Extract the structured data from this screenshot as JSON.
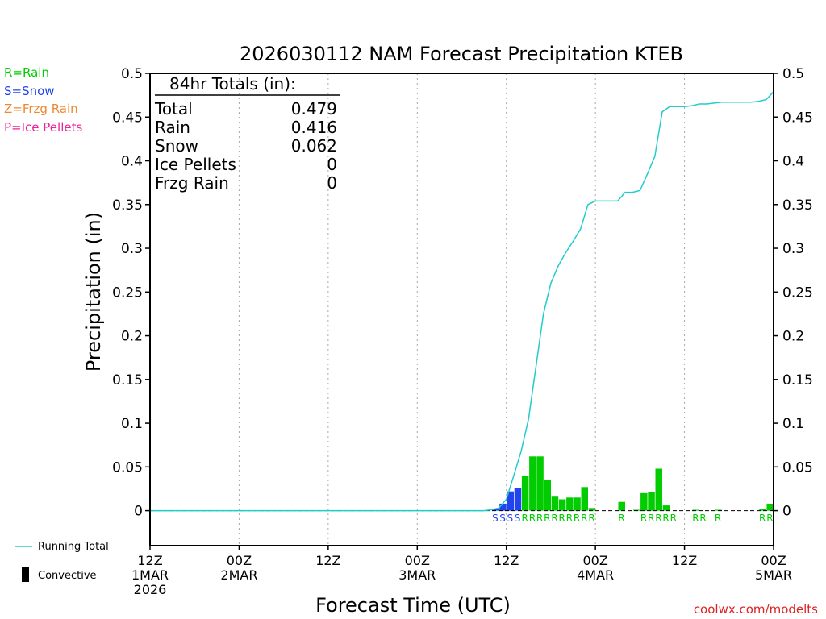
{
  "chart_data": {
    "type": "bar",
    "title": "2026030112 NAM Forecast Precipitation KTEB",
    "xlabel": "Forecast Time (UTC)",
    "ylabel": "Precipitation (in)",
    "ylim": [
      -0.04,
      0.5
    ],
    "yticks": [
      0,
      0.05,
      0.1,
      0.15,
      0.2,
      0.25,
      0.3,
      0.35,
      0.4,
      0.45,
      0.5
    ],
    "ytick_labels": [
      "0",
      "0.05",
      "0.1",
      "0.15",
      "0.2",
      "0.25",
      "0.3",
      "0.35",
      "0.4",
      "0.45",
      "0.5"
    ],
    "xlim_hours": [
      0,
      84
    ],
    "xticks": [
      {
        "hour": 0,
        "line1": "12Z",
        "line2": "1MAR",
        "line3": "2026"
      },
      {
        "hour": 12,
        "line1": "00Z",
        "line2": "2MAR",
        "line3": ""
      },
      {
        "hour": 24,
        "line1": "12Z",
        "line2": "",
        "line3": ""
      },
      {
        "hour": 36,
        "line1": "00Z",
        "line2": "3MAR",
        "line3": ""
      },
      {
        "hour": 48,
        "line1": "12Z",
        "line2": "",
        "line3": ""
      },
      {
        "hour": 60,
        "line1": "00Z",
        "line2": "4MAR",
        "line3": ""
      },
      {
        "hour": 72,
        "line1": "12Z",
        "line2": "",
        "line3": ""
      },
      {
        "hour": 84,
        "line1": "00Z",
        "line2": "5MAR",
        "line3": ""
      }
    ],
    "precip_series": {
      "name": "Hourly precipitation by type",
      "bars": [
        {
          "hour": 47,
          "value": 0.002,
          "type": "S"
        },
        {
          "hour": 48,
          "value": 0.008,
          "type": "S"
        },
        {
          "hour": 49,
          "value": 0.022,
          "type": "S"
        },
        {
          "hour": 50,
          "value": 0.026,
          "type": "S"
        },
        {
          "hour": 51,
          "value": 0.04,
          "type": "R"
        },
        {
          "hour": 52,
          "value": 0.062,
          "type": "R"
        },
        {
          "hour": 53,
          "value": 0.062,
          "type": "R"
        },
        {
          "hour": 54,
          "value": 0.035,
          "type": "R"
        },
        {
          "hour": 55,
          "value": 0.016,
          "type": "R"
        },
        {
          "hour": 56,
          "value": 0.013,
          "type": "R"
        },
        {
          "hour": 57,
          "value": 0.015,
          "type": "R"
        },
        {
          "hour": 58,
          "value": 0.015,
          "type": "R"
        },
        {
          "hour": 59,
          "value": 0.027,
          "type": "R"
        },
        {
          "hour": 60,
          "value": 0.003,
          "type": "R"
        },
        {
          "hour": 64,
          "value": 0.01,
          "type": "R"
        },
        {
          "hour": 66,
          "value": 0.001,
          "type": "R"
        },
        {
          "hour": 67,
          "value": 0.02,
          "type": "R"
        },
        {
          "hour": 68,
          "value": 0.021,
          "type": "R"
        },
        {
          "hour": 69,
          "value": 0.048,
          "type": "R"
        },
        {
          "hour": 70,
          "value": 0.006,
          "type": "R"
        },
        {
          "hour": 74,
          "value": 0.001,
          "type": "R"
        },
        {
          "hour": 77,
          "value": 0.001,
          "type": "R"
        },
        {
          "hour": 83,
          "value": 0.002,
          "type": "R"
        },
        {
          "hour": 84,
          "value": 0.008,
          "type": "R"
        }
      ]
    },
    "running_total": {
      "name": "Running Total",
      "x": [
        0,
        45,
        46,
        47,
        48,
        49,
        50,
        51,
        52,
        53,
        54,
        55,
        56,
        57,
        58,
        59,
        60,
        61,
        62,
        63,
        64,
        65,
        66,
        67,
        68,
        69,
        70,
        71,
        72,
        73,
        74,
        75,
        76,
        77,
        78,
        79,
        80,
        81,
        82,
        83,
        84
      ],
      "y": [
        0,
        0,
        0.001,
        0.003,
        0.013,
        0.04,
        0.068,
        0.105,
        0.165,
        0.225,
        0.26,
        0.28,
        0.295,
        0.308,
        0.322,
        0.35,
        0.354,
        0.354,
        0.354,
        0.354,
        0.364,
        0.364,
        0.366,
        0.385,
        0.405,
        0.456,
        0.462,
        0.462,
        0.462,
        0.463,
        0.465,
        0.465,
        0.466,
        0.467,
        0.467,
        0.467,
        0.467,
        0.467,
        0.468,
        0.47,
        0.479
      ]
    },
    "type_label_row": [
      {
        "start": 47,
        "text": "SSSS",
        "type": "S"
      },
      {
        "start": 51,
        "text": "RRRRRRRRRR",
        "type": "R"
      },
      {
        "start": 64,
        "text": "R",
        "type": "R"
      },
      {
        "start": 67,
        "text": "RRRRR",
        "type": "R"
      },
      {
        "start": 74,
        "text": "RR",
        "type": "R"
      },
      {
        "start": 77,
        "text": "R",
        "type": "R"
      },
      {
        "start": 83,
        "text": "RR",
        "type": "R"
      }
    ],
    "totals_box": {
      "title": "84hr Totals (in):",
      "rows": [
        {
          "label": "Total",
          "value": "0.479"
        },
        {
          "label": "Rain",
          "value": "0.416"
        },
        {
          "label": "Snow",
          "value": "0.062"
        },
        {
          "label": "Ice Pellets",
          "value": "0"
        },
        {
          "label": "Frzg Rain",
          "value": "0"
        }
      ]
    },
    "bottom_legend": {
      "running_total_label": "Running Total",
      "convective_label": "Convective"
    },
    "colors": {
      "R": "#00cc00",
      "S": "#2244ee",
      "Z": "#ee8833",
      "P": "#ee2299",
      "running_total": "#22cccc",
      "axis": "#000000",
      "grid": "#aaaaaa",
      "credit": "#dd2222"
    }
  },
  "type_legend": [
    {
      "key": "R",
      "label": "R=Rain"
    },
    {
      "key": "S",
      "label": "S=Snow"
    },
    {
      "key": "Z",
      "label": "Z=Frzg Rain"
    },
    {
      "key": "P",
      "label": "P=Ice Pellets"
    }
  ],
  "credit": "coolwx.com/modelts"
}
